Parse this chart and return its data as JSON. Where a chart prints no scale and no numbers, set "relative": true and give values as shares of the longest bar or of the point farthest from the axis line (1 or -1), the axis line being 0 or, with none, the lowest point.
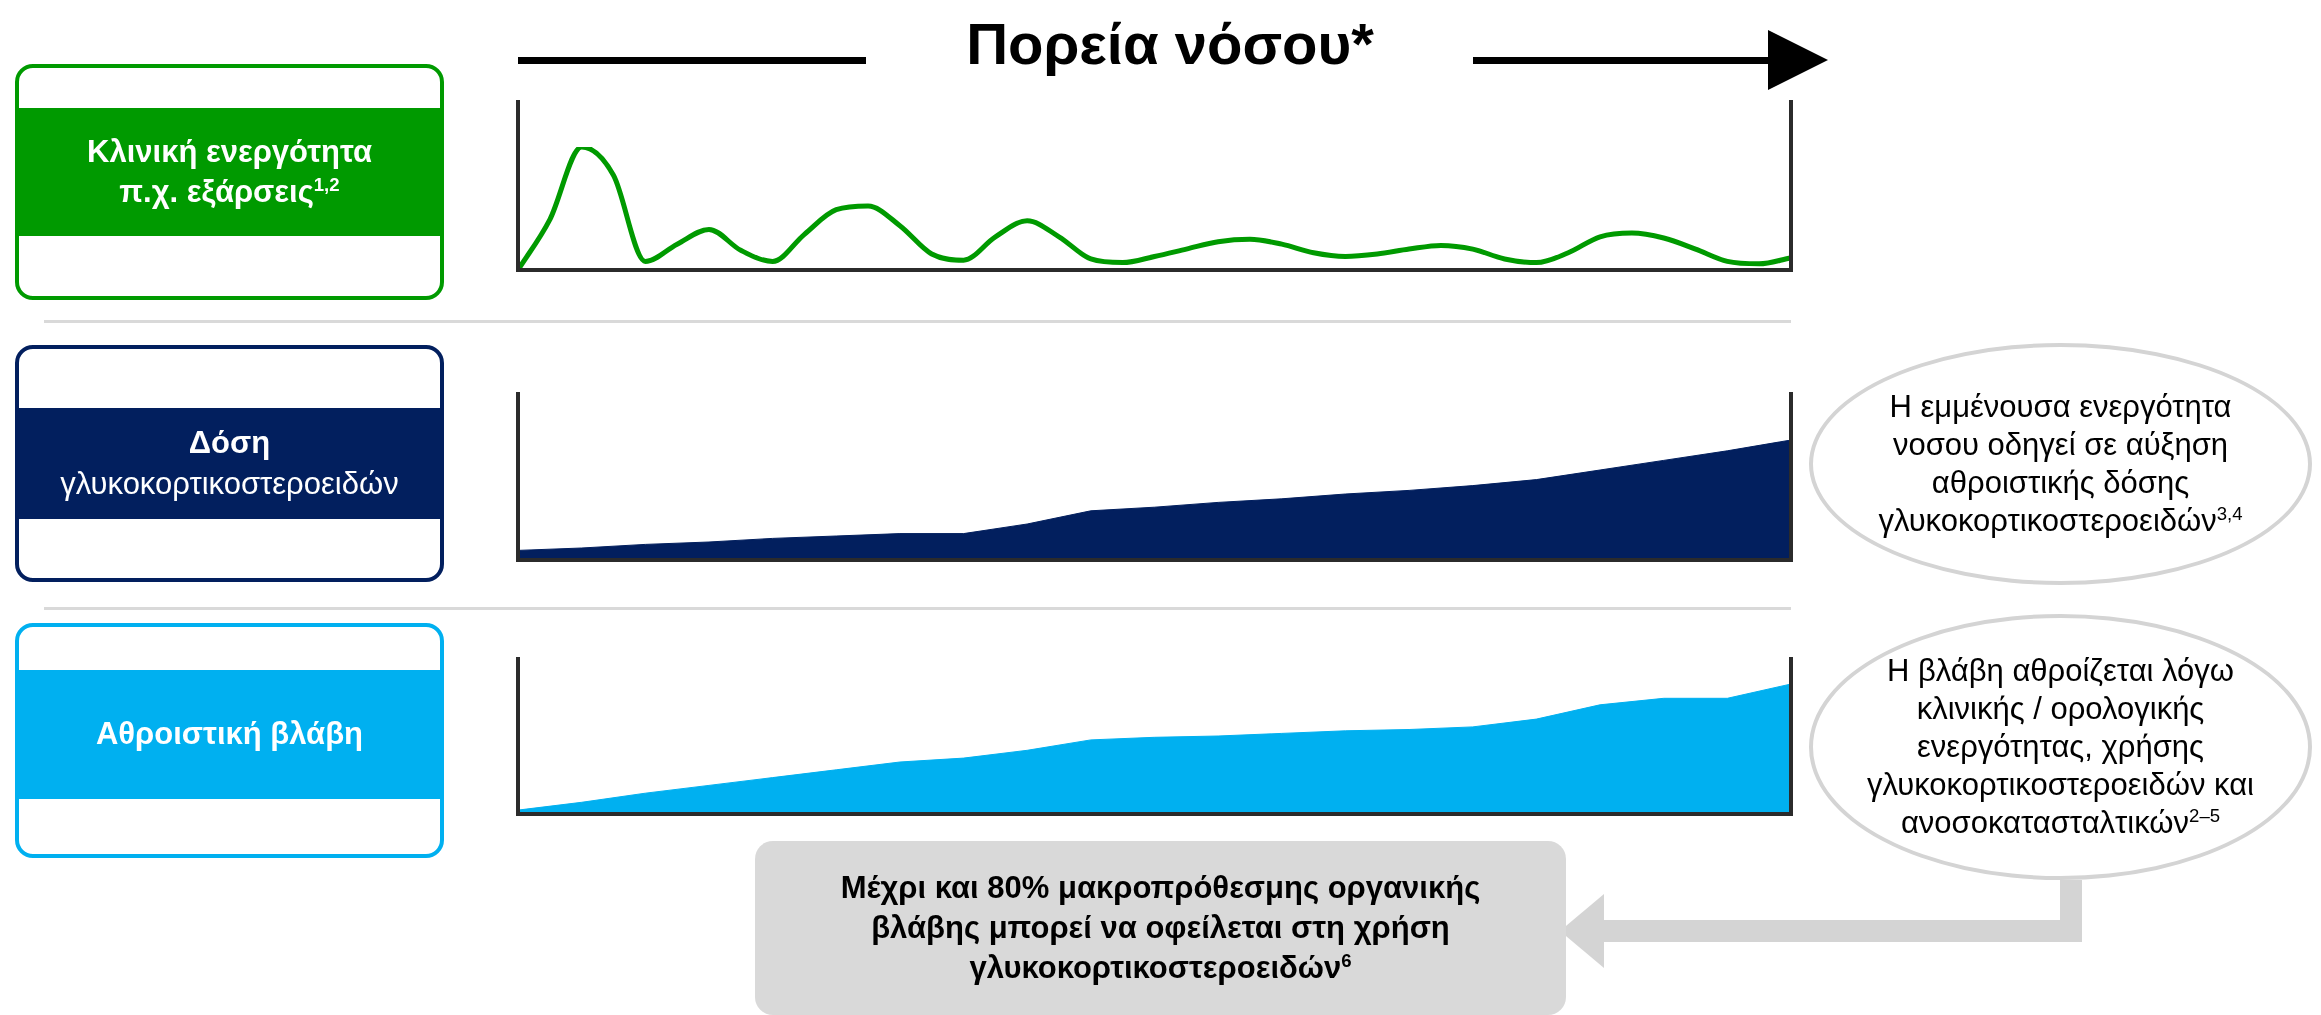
{
  "chart_data": [
    {
      "type": "line",
      "title": "Πορεία νόσου*",
      "ylabel": "Κλινική ενεργότητα\nπ.χ. εξάρσεις$^{1,2}$",
      "relative": true,
      "marker": "none",
      "color": "#009a00",
      "categories": [
        null,
        null,
        null,
        null,
        null,
        null,
        null,
        null,
        null,
        null,
        null,
        null,
        null,
        null,
        null,
        null,
        null,
        null,
        null,
        null,
        null,
        null,
        null,
        null,
        null,
        null,
        null,
        null,
        null,
        null,
        null,
        null,
        null,
        null,
        null,
        null,
        null,
        null,
        null,
        null,
        null
      ],
      "values": [
        0,
        0.41,
        1,
        0.77,
        0.07,
        0.21,
        0.33,
        0.16,
        0.07,
        0.29,
        0.49,
        0.52,
        0.36,
        0.13,
        0.08,
        0.27,
        0.4,
        0.27,
        0.09,
        0.06,
        0.11,
        0.17,
        0.23,
        0.25,
        0.21,
        0.14,
        0.11,
        0.13,
        0.17,
        0.2,
        0.17,
        0.09,
        0.06,
        0.14,
        0.27,
        0.3,
        0.26,
        0.17,
        0.07,
        0.05,
        0.1
      ]
    },
    {
      "type": "area",
      "ylabel": "Δόση\nγλυκοκορτικοστεροειδών",
      "relative": true,
      "color": "#021f5e",
      "categories": [
        null,
        null,
        null,
        null,
        null,
        null,
        null,
        null,
        null,
        null,
        null,
        null,
        null,
        null,
        null,
        null,
        null,
        null,
        null,
        null,
        null
      ],
      "values": [
        0.08,
        0.1,
        0.13,
        0.15,
        0.18,
        0.2,
        0.22,
        0.22,
        0.3,
        0.41,
        0.44,
        0.48,
        0.51,
        0.55,
        0.58,
        0.62,
        0.67,
        0.75,
        0.83,
        0.91,
        1
      ],
      "annotations": [
        "Η εμμένουσα ενεργότητα νοσου οδηγεί σε αύξηση αθροιστικής δόσης γλυκοκορτικοστεροειδών$^{3,4}$"
      ]
    },
    {
      "type": "area",
      "ylabel": "Αθροιστική βλάβη",
      "relative": true,
      "color": "#00b0f0",
      "categories": [
        null,
        null,
        null,
        null,
        null,
        null,
        null,
        null,
        null,
        null,
        null,
        null,
        null,
        null,
        null,
        null,
        null,
        null,
        null,
        null,
        null
      ],
      "values": [
        0.03,
        0.09,
        0.16,
        0.22,
        0.28,
        0.34,
        0.4,
        0.43,
        0.49,
        0.57,
        0.59,
        0.6,
        0.62,
        0.64,
        0.65,
        0.67,
        0.73,
        0.84,
        0.89,
        0.89,
        1
      ],
      "annotations": [
        "Η βλάβη αθροίζεται λόγω κλινικής / ορολογικής ενεργότητας, χρήσης γλυκοκορτικοστεροειδών και ανοσοκατασταλτικών$^{2–5}$",
        "Μέχρι και 80% μακροπρόθεσμης οργανικής βλάβης μπορεί να οφείλεται στη χρήση γλυκοκορτικοστεροειδών$^{6}$"
      ]
    }
  ]
}
